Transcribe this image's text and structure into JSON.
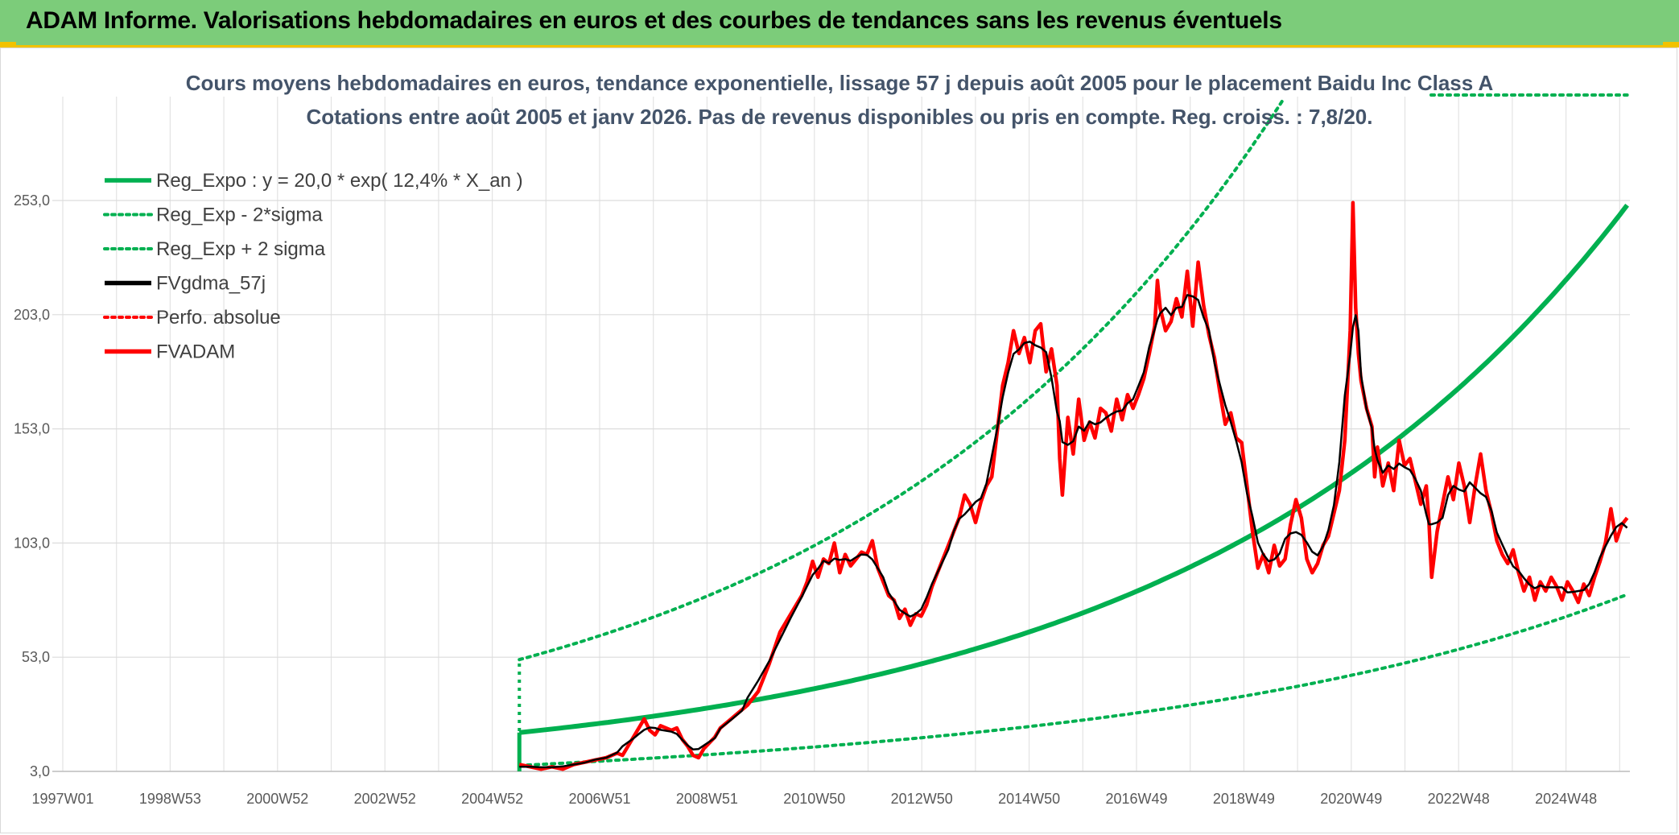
{
  "banner": {
    "title": "ADAM Informe. Valorisations hebdomadaires en euros et des courbes de tendances sans les revenus éventuels"
  },
  "chart_data": {
    "type": "line",
    "title": "Cours moyens hebdomadaires en euros, tendance exponentielle, lissage 57 j depuis août 2005 pour le placement Baidu Inc Class A",
    "subtitle": "Cotations entre août 2005 et janv 2026. Pas de revenus disponibles ou pris en compte. Reg. croiss. : 7,8/20.",
    "xlabel": "",
    "ylabel": "",
    "x_ticks": [
      "1997W01",
      "1998W53",
      "2000W52",
      "2002W52",
      "2004W52",
      "2006W51",
      "2008W51",
      "2010W50",
      "2012W50",
      "2014W50",
      "2016W49",
      "2018W49",
      "2020W49",
      "2022W48",
      "2024W48"
    ],
    "x_range": [
      1997.0,
      2026.05
    ],
    "y_ticks": [
      "3,0",
      "53,0",
      "103,0",
      "153,0",
      "203,0",
      "253,0"
    ],
    "ylim": [
      3,
      285
    ],
    "grid": true,
    "legend_position": "top-left",
    "regression": {
      "a": 20.0,
      "rate": 0.124,
      "x0": 2005.6,
      "sigma_factor": 0.45
    },
    "series": [
      {
        "name": "Reg_Expo : y = 20,0 * exp( 12,4% *  X_an )",
        "color": "#00b050",
        "style": "solid"
      },
      {
        "name": "Reg_Exp - 2*sigma",
        "color": "#00b050",
        "style": "dotted"
      },
      {
        "name": "Reg_Exp + 2 sigma",
        "color": "#00b050",
        "style": "dotted"
      },
      {
        "name": "FVgdma_57j",
        "color": "#000000",
        "style": "solid"
      },
      {
        "name": "Perfo. absolue",
        "color": "#ff0000",
        "style": "dotted"
      },
      {
        "name": "FVADAM",
        "color": "#ff0000",
        "style": "solid",
        "points": [
          [
            2005.6,
            6
          ],
          [
            2005.8,
            5
          ],
          [
            2006.0,
            4
          ],
          [
            2006.2,
            5
          ],
          [
            2006.4,
            4
          ],
          [
            2006.6,
            6
          ],
          [
            2006.8,
            7
          ],
          [
            2007.0,
            8
          ],
          [
            2007.2,
            9
          ],
          [
            2007.4,
            11
          ],
          [
            2007.5,
            10
          ],
          [
            2007.7,
            18
          ],
          [
            2007.8,
            22
          ],
          [
            2007.9,
            26
          ],
          [
            2008.0,
            21
          ],
          [
            2008.1,
            19
          ],
          [
            2008.2,
            23
          ],
          [
            2008.4,
            21
          ],
          [
            2008.5,
            22
          ],
          [
            2008.6,
            17
          ],
          [
            2008.7,
            14
          ],
          [
            2008.8,
            10
          ],
          [
            2008.9,
            9
          ],
          [
            2009.0,
            13
          ],
          [
            2009.2,
            18
          ],
          [
            2009.3,
            22
          ],
          [
            2009.5,
            26
          ],
          [
            2009.7,
            30
          ],
          [
            2009.8,
            32
          ],
          [
            2010.0,
            38
          ],
          [
            2010.2,
            50
          ],
          [
            2010.4,
            64
          ],
          [
            2010.6,
            72
          ],
          [
            2010.8,
            80
          ],
          [
            2010.9,
            86
          ],
          [
            2011.0,
            95
          ],
          [
            2011.1,
            88
          ],
          [
            2011.2,
            96
          ],
          [
            2011.3,
            94
          ],
          [
            2011.4,
            103
          ],
          [
            2011.5,
            90
          ],
          [
            2011.6,
            98
          ],
          [
            2011.7,
            93
          ],
          [
            2011.8,
            96
          ],
          [
            2011.9,
            99
          ],
          [
            2012.0,
            98
          ],
          [
            2012.1,
            104
          ],
          [
            2012.2,
            92
          ],
          [
            2012.3,
            86
          ],
          [
            2012.4,
            80
          ],
          [
            2012.5,
            78
          ],
          [
            2012.6,
            70
          ],
          [
            2012.7,
            74
          ],
          [
            2012.8,
            67
          ],
          [
            2012.9,
            72
          ],
          [
            2013.0,
            71
          ],
          [
            2013.1,
            76
          ],
          [
            2013.2,
            84
          ],
          [
            2013.35,
            93
          ],
          [
            2013.5,
            102
          ],
          [
            2013.6,
            108
          ],
          [
            2013.7,
            114
          ],
          [
            2013.8,
            124
          ],
          [
            2013.9,
            120
          ],
          [
            2014.0,
            112
          ],
          [
            2014.1,
            121
          ],
          [
            2014.2,
            128
          ],
          [
            2014.3,
            132
          ],
          [
            2014.4,
            152
          ],
          [
            2014.5,
            172
          ],
          [
            2014.6,
            182
          ],
          [
            2014.7,
            196
          ],
          [
            2014.8,
            186
          ],
          [
            2014.9,
            193
          ],
          [
            2015.0,
            182
          ],
          [
            2015.1,
            196
          ],
          [
            2015.2,
            199
          ],
          [
            2015.3,
            178
          ],
          [
            2015.4,
            188
          ],
          [
            2015.5,
            172
          ],
          [
            2015.55,
            140
          ],
          [
            2015.6,
            124
          ],
          [
            2015.7,
            158
          ],
          [
            2015.8,
            142
          ],
          [
            2015.9,
            166
          ],
          [
            2016.0,
            148
          ],
          [
            2016.1,
            156
          ],
          [
            2016.2,
            149
          ],
          [
            2016.3,
            162
          ],
          [
            2016.4,
            160
          ],
          [
            2016.5,
            152
          ],
          [
            2016.6,
            166
          ],
          [
            2016.7,
            157
          ],
          [
            2016.8,
            168
          ],
          [
            2016.9,
            162
          ],
          [
            2017.0,
            168
          ],
          [
            2017.1,
            175
          ],
          [
            2017.2,
            186
          ],
          [
            2017.3,
            198
          ],
          [
            2017.35,
            218
          ],
          [
            2017.4,
            206
          ],
          [
            2017.5,
            196
          ],
          [
            2017.6,
            200
          ],
          [
            2017.7,
            210
          ],
          [
            2017.8,
            202
          ],
          [
            2017.9,
            222
          ],
          [
            2018.0,
            198
          ],
          [
            2018.1,
            226
          ],
          [
            2018.2,
            207
          ],
          [
            2018.3,
            194
          ],
          [
            2018.4,
            184
          ],
          [
            2018.5,
            169
          ],
          [
            2018.6,
            155
          ],
          [
            2018.7,
            160
          ],
          [
            2018.8,
            149
          ],
          [
            2018.9,
            147
          ],
          [
            2019.0,
            128
          ],
          [
            2019.1,
            108
          ],
          [
            2019.2,
            92
          ],
          [
            2019.3,
            98
          ],
          [
            2019.4,
            90
          ],
          [
            2019.5,
            102
          ],
          [
            2019.6,
            93
          ],
          [
            2019.7,
            96
          ],
          [
            2019.8,
            111
          ],
          [
            2019.9,
            122
          ],
          [
            2020.0,
            114
          ],
          [
            2020.1,
            96
          ],
          [
            2020.2,
            90
          ],
          [
            2020.3,
            94
          ],
          [
            2020.4,
            102
          ],
          [
            2020.5,
            106
          ],
          [
            2020.6,
            116
          ],
          [
            2020.7,
            126
          ],
          [
            2020.8,
            148
          ],
          [
            2020.9,
            196
          ],
          [
            2020.95,
            252
          ],
          [
            2021.0,
            206
          ],
          [
            2021.05,
            186
          ],
          [
            2021.1,
            174
          ],
          [
            2021.2,
            162
          ],
          [
            2021.3,
            154
          ],
          [
            2021.35,
            132
          ],
          [
            2021.4,
            145
          ],
          [
            2021.5,
            128
          ],
          [
            2021.6,
            138
          ],
          [
            2021.7,
            126
          ],
          [
            2021.8,
            148
          ],
          [
            2021.9,
            137
          ],
          [
            2022.0,
            140
          ],
          [
            2022.1,
            130
          ],
          [
            2022.2,
            120
          ],
          [
            2022.3,
            128
          ],
          [
            2022.35,
            112
          ],
          [
            2022.4,
            88
          ],
          [
            2022.5,
            108
          ],
          [
            2022.6,
            120
          ],
          [
            2022.7,
            132
          ],
          [
            2022.8,
            122
          ],
          [
            2022.9,
            138
          ],
          [
            2023.0,
            128
          ],
          [
            2023.1,
            112
          ],
          [
            2023.2,
            128
          ],
          [
            2023.3,
            142
          ],
          [
            2023.4,
            126
          ],
          [
            2023.5,
            116
          ],
          [
            2023.6,
            104
          ],
          [
            2023.7,
            98
          ],
          [
            2023.8,
            94
          ],
          [
            2023.9,
            100
          ],
          [
            2024.0,
            90
          ],
          [
            2024.1,
            82
          ],
          [
            2024.2,
            88
          ],
          [
            2024.3,
            78
          ],
          [
            2024.4,
            86
          ],
          [
            2024.5,
            82
          ],
          [
            2024.6,
            88
          ],
          [
            2024.7,
            84
          ],
          [
            2024.8,
            78
          ],
          [
            2024.9,
            86
          ],
          [
            2025.0,
            82
          ],
          [
            2025.1,
            77
          ],
          [
            2025.2,
            85
          ],
          [
            2025.3,
            80
          ],
          [
            2025.4,
            88
          ],
          [
            2025.5,
            95
          ],
          [
            2025.6,
            103
          ],
          [
            2025.7,
            118
          ],
          [
            2025.8,
            104
          ],
          [
            2025.9,
            111
          ],
          [
            2026.0,
            114
          ]
        ]
      }
    ]
  }
}
